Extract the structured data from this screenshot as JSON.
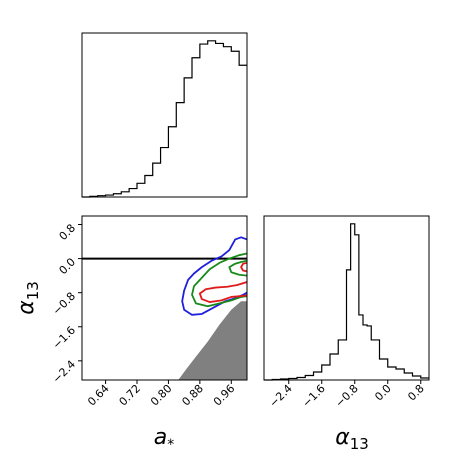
{
  "chart_data": [
    {
      "type": "histogram",
      "panel": "top-left",
      "variable": "a_*",
      "xlim": [
        0.58,
        1.0
      ],
      "bin_edges": [
        0.58,
        0.6,
        0.62,
        0.64,
        0.66,
        0.68,
        0.7,
        0.72,
        0.74,
        0.76,
        0.78,
        0.8,
        0.82,
        0.84,
        0.86,
        0.88,
        0.9,
        0.92,
        0.94,
        0.96,
        0.98,
        1.0
      ],
      "counts": [
        0,
        2,
        4,
        6,
        10,
        16,
        26,
        42,
        66,
        104,
        152,
        216,
        290,
        366,
        428,
        470,
        480,
        472,
        462,
        448,
        405
      ]
    },
    {
      "type": "contour",
      "panel": "bottom-left",
      "xlabel": "a_*",
      "ylabel": "α_13",
      "xlim": [
        0.58,
        1.0
      ],
      "ylim": [
        -2.85,
        1.0
      ],
      "xticks": [
        "0.64",
        "0.72",
        "0.80",
        "0.88",
        "0.96"
      ],
      "yticks": [
        "0.8",
        "0.0",
        "−0.8",
        "−1.6",
        "−2.4"
      ],
      "xtick_values": [
        0.64,
        0.72,
        0.8,
        0.88,
        0.96
      ],
      "ytick_values": [
        0.8,
        0.0,
        -0.8,
        -1.6,
        -2.4
      ],
      "reference_line_y": 0.0,
      "excluded_region": {
        "color": "#808080",
        "points": [
          [
            0.825,
            -2.85
          ],
          [
            1.0,
            -2.85
          ],
          [
            1.0,
            -1.0
          ],
          [
            0.985,
            -1.0
          ],
          [
            0.96,
            -1.2
          ],
          [
            0.93,
            -1.55
          ],
          [
            0.9,
            -1.95
          ],
          [
            0.87,
            -2.3
          ],
          [
            0.845,
            -2.6
          ]
        ]
      },
      "contours": [
        {
          "level": "outer",
          "color": "#1f1fdd",
          "points": [
            [
              1.0,
              0.45
            ],
            [
              0.985,
              0.5
            ],
            [
              0.97,
              0.45
            ],
            [
              0.955,
              0.2
            ],
            [
              0.935,
              0.05
            ],
            [
              0.91,
              -0.05
            ],
            [
              0.885,
              -0.2
            ],
            [
              0.865,
              -0.35
            ],
            [
              0.85,
              -0.5
            ],
            [
              0.84,
              -0.75
            ],
            [
              0.835,
              -1.0
            ],
            [
              0.84,
              -1.2
            ],
            [
              0.86,
              -1.32
            ],
            [
              0.885,
              -1.3
            ],
            [
              0.915,
              -1.15
            ],
            [
              0.945,
              -1.0
            ],
            [
              0.97,
              -0.93
            ],
            [
              0.99,
              -0.85
            ],
            [
              1.0,
              -0.8
            ]
          ]
        },
        {
          "level": "middle",
          "color": "#1a8a1a",
          "points": [
            [
              1.0,
              0.12
            ],
            [
              0.98,
              0.08
            ],
            [
              0.955,
              0.0
            ],
            [
              0.93,
              -0.1
            ],
            [
              0.905,
              -0.25
            ],
            [
              0.885,
              -0.45
            ],
            [
              0.865,
              -0.65
            ],
            [
              0.86,
              -0.85
            ],
            [
              0.87,
              -1.05
            ],
            [
              0.9,
              -1.12
            ],
            [
              0.93,
              -1.05
            ],
            [
              0.96,
              -0.98
            ],
            [
              0.985,
              -0.9
            ],
            [
              1.0,
              -0.88
            ]
          ]
        },
        {
          "level": "middle-inner",
          "color": "#1a8a1a",
          "points": [
            [
              1.0,
              -0.05
            ],
            [
              0.985,
              -0.08
            ],
            [
              0.97,
              -0.12
            ],
            [
              0.955,
              -0.2
            ],
            [
              0.96,
              -0.32
            ],
            [
              0.98,
              -0.38
            ],
            [
              1.0,
              -0.4
            ]
          ]
        },
        {
          "level": "inner",
          "color": "#e01a1a",
          "points": [
            [
              1.0,
              -0.55
            ],
            [
              0.975,
              -0.62
            ],
            [
              0.95,
              -0.66
            ],
            [
              0.92,
              -0.68
            ],
            [
              0.895,
              -0.72
            ],
            [
              0.88,
              -0.82
            ],
            [
              0.885,
              -0.95
            ],
            [
              0.905,
              -1.02
            ],
            [
              0.935,
              -0.98
            ],
            [
              0.96,
              -0.9
            ],
            [
              0.985,
              -0.88
            ],
            [
              1.0,
              -0.86
            ]
          ]
        },
        {
          "level": "inner-top",
          "color": "#e01a1a",
          "points": [
            [
              1.0,
              -0.1
            ],
            [
              0.99,
              -0.12
            ],
            [
              0.985,
              -0.2
            ],
            [
              0.99,
              -0.28
            ],
            [
              1.0,
              -0.3
            ]
          ]
        }
      ]
    },
    {
      "type": "histogram",
      "panel": "bottom-right",
      "variable": "α_13",
      "xlabel": "α_13",
      "xlim": [
        -3.0,
        1.0
      ],
      "xticks": [
        "−2.4",
        "−1.6",
        "−0.8",
        "0.0",
        "0.8"
      ],
      "xtick_values": [
        -2.4,
        -1.6,
        -0.8,
        0.0,
        0.8
      ],
      "bin_edges": [
        -3.0,
        -2.8,
        -2.6,
        -2.4,
        -2.2,
        -2.0,
        -1.8,
        -1.6,
        -1.4,
        -1.2,
        -1.0,
        -0.9,
        -0.8,
        -0.7,
        -0.6,
        -0.5,
        -0.4,
        -0.2,
        0.0,
        0.2,
        0.4,
        0.6,
        0.8,
        1.0
      ],
      "counts": [
        0,
        1,
        2,
        3,
        5,
        9,
        16,
        30,
        52,
        80,
        220,
        312,
        290,
        130,
        110,
        108,
        80,
        42,
        26,
        22,
        14,
        8,
        4
      ]
    }
  ]
}
